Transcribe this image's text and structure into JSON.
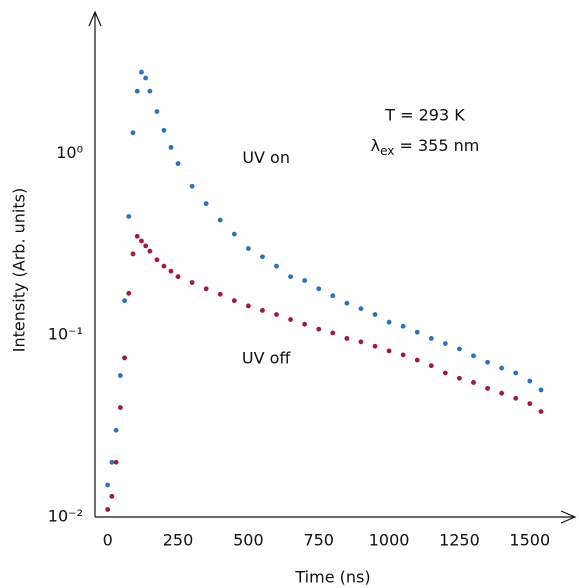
{
  "chart_data": {
    "type": "scatter",
    "log_y": true,
    "xlabel": "Time (ns)",
    "ylabel": "Intensity (Arb. units)",
    "xlim": [
      -45,
      1650
    ],
    "xticks": [
      0,
      250,
      500,
      750,
      1000,
      1250,
      1500
    ],
    "ylim": [
      0.01,
      6
    ],
    "yticks": [
      {
        "value": 0.01,
        "label": "10⁻²"
      },
      {
        "value": 0.1,
        "label": "10⁻¹"
      },
      {
        "value": 1,
        "label": "10⁰"
      }
    ],
    "annotations": [
      "T = 293 K"
    ],
    "excitation_label": [
      "λ",
      "ex",
      " = 355 nm"
    ],
    "x": [
      0,
      15,
      30,
      45,
      60,
      75,
      90,
      105,
      120,
      135,
      150,
      175,
      200,
      225,
      250,
      300,
      350,
      400,
      450,
      500,
      550,
      600,
      650,
      700,
      750,
      800,
      850,
      900,
      950,
      1000,
      1050,
      1100,
      1150,
      1200,
      1250,
      1300,
      1350,
      1400,
      1450,
      1500,
      1540
    ],
    "series": [
      {
        "name": "UV on",
        "color": "#2a73c3",
        "values": [
          0.015,
          0.02,
          0.03,
          0.06,
          0.155,
          0.45,
          1.3,
          2.2,
          2.8,
          2.6,
          2.2,
          1.7,
          1.34,
          1.08,
          0.88,
          0.66,
          0.53,
          0.43,
          0.36,
          0.3,
          0.27,
          0.24,
          0.21,
          0.2,
          0.18,
          0.165,
          0.15,
          0.14,
          0.13,
          0.118,
          0.112,
          0.104,
          0.096,
          0.09,
          0.084,
          0.077,
          0.071,
          0.066,
          0.062,
          0.056,
          0.05
        ]
      },
      {
        "name": "UV off",
        "color": "#a3193a",
        "values": [
          0.011,
          0.013,
          0.02,
          0.04,
          0.075,
          0.17,
          0.28,
          0.35,
          0.33,
          0.31,
          0.29,
          0.26,
          0.24,
          0.225,
          0.21,
          0.195,
          0.18,
          0.168,
          0.155,
          0.145,
          0.137,
          0.13,
          0.122,
          0.115,
          0.108,
          0.103,
          0.096,
          0.092,
          0.087,
          0.082,
          0.078,
          0.073,
          0.068,
          0.062,
          0.058,
          0.055,
          0.051,
          0.048,
          0.045,
          0.042,
          0.038
        ]
      }
    ]
  }
}
